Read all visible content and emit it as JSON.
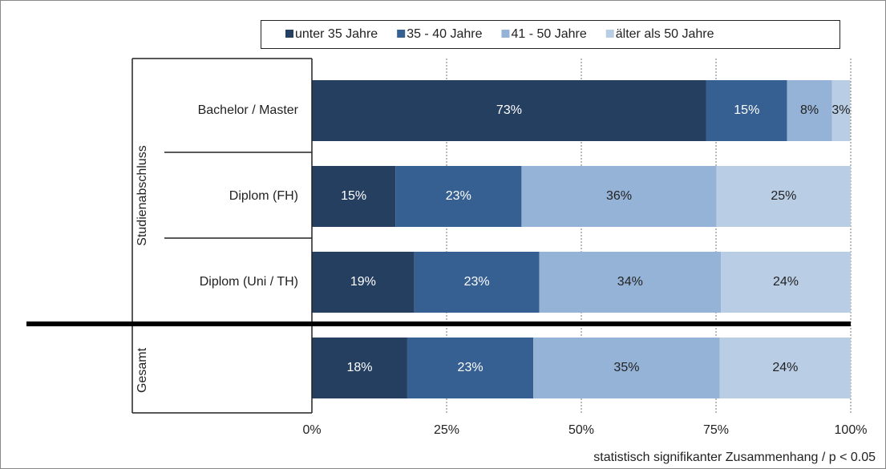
{
  "chart_data": {
    "type": "bar",
    "orientation": "horizontal",
    "stacked": true,
    "categories": [
      "Bachelor / Master",
      "Diplom (FH)",
      "Diplom (Uni / TH)",
      "Gesamt"
    ],
    "group_labels": [
      "Studienabschluss",
      "Gesamt"
    ],
    "series": [
      {
        "name": "unter 35 Jahre",
        "color": "#253f61",
        "values": [
          73.2,
          15.5,
          19.0,
          17.7
        ],
        "value_labels": [
          "73%",
          "15%",
          "19%",
          "18%"
        ]
      },
      {
        "name": "35 - 40 Jahre",
        "color": "#366092",
        "values": [
          15.0,
          23.4,
          23.2,
          23.4
        ],
        "value_labels": [
          "15%",
          "23%",
          "23%",
          "23%"
        ]
      },
      {
        "name": "41 - 50 Jahre",
        "color": "#95b3d7",
        "values": [
          8.3,
          36.2,
          33.7,
          34.6
        ],
        "value_labels": [
          "8%",
          "36%",
          "34%",
          "35%"
        ]
      },
      {
        "name": "älter als 50 Jahre",
        "color": "#b9cde5",
        "values": [
          3.4,
          24.9,
          24.1,
          24.3
        ],
        "value_labels": [
          "3%",
          "25%",
          "24%",
          "24%"
        ]
      }
    ],
    "xlim": [
      0,
      100
    ],
    "xticks": [
      {
        "value": 0,
        "label": "0%"
      },
      {
        "value": 25,
        "label": "25%"
      },
      {
        "value": 50,
        "label": "50%"
      },
      {
        "value": 75,
        "label": "75%"
      },
      {
        "value": 100,
        "label": "100%"
      }
    ],
    "grid": true,
    "legend": "top",
    "note": "statistisch signifikanter Zusammenhang / p < 0.05"
  }
}
